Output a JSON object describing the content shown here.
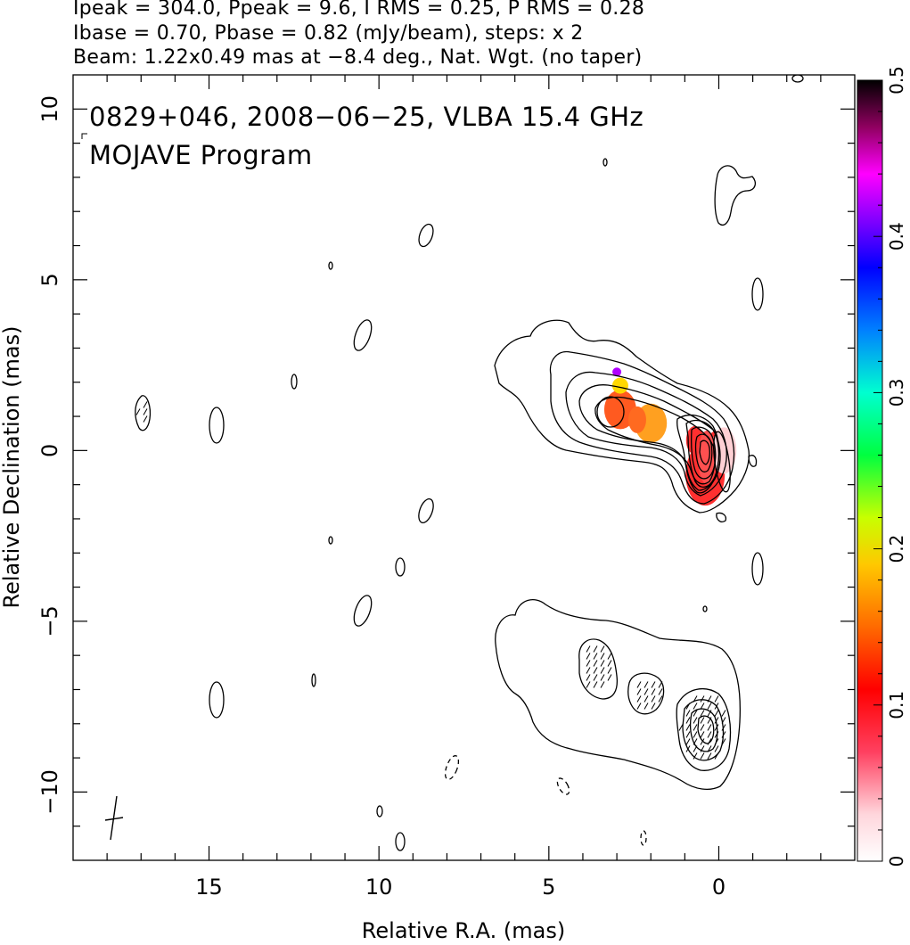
{
  "header": {
    "line1": "Ipeak = 304.0, Ppeak = 9.6, I RMS = 0.25, P RMS = 0.28",
    "line2": "Ibase = 0.70, Pbase = 0.82 (mJy/beam), steps: x 2",
    "line3": "Beam: 1.22x0.49 mas at −8.4 deg., Nat. Wgt. (no taper)"
  },
  "chart_data": {
    "type": "heatmap",
    "title": "0829+046, 2008−06−25, VLBA 15.4 GHz",
    "subtitle": "MOJAVE Program",
    "xlabel": "Relative R.A. (mas)",
    "ylabel": "Relative Declination (mas)",
    "xlim": [
      19.0,
      -4.0
    ],
    "ylim": [
      -12.0,
      11.0
    ],
    "x_ticks": [
      {
        "value": 15,
        "label": "15"
      },
      {
        "value": 10,
        "label": "10"
      },
      {
        "value": 5,
        "label": "5"
      },
      {
        "value": 0,
        "label": "0"
      }
    ],
    "y_ticks": [
      {
        "value": 10,
        "label": "10"
      },
      {
        "value": 5,
        "label": "5"
      },
      {
        "value": 0,
        "label": "0"
      },
      {
        "value": -5,
        "label": "−5"
      },
      {
        "value": -10,
        "label": "−10"
      }
    ],
    "colorbar": {
      "min": 0,
      "max": 0.5,
      "ticks": [
        {
          "value": 0,
          "label": "0"
        },
        {
          "value": 0.1,
          "label": "0.1"
        },
        {
          "value": 0.2,
          "label": "0.2"
        },
        {
          "value": 0.3,
          "label": "0.3"
        },
        {
          "value": 0.4,
          "label": "0.4"
        },
        {
          "value": 0.5,
          "label": "0.5"
        }
      ]
    },
    "fractional_polarization_regions": [
      {
        "x": 2.9,
        "y": 1.2,
        "value": 0.1
      },
      {
        "x": 2.9,
        "y": 1.9,
        "value": 0.2
      },
      {
        "x": 3.0,
        "y": 2.3,
        "value": 0.42
      },
      {
        "x": 2.0,
        "y": 0.8,
        "value": 0.14
      },
      {
        "x": 0.7,
        "y": 0.3,
        "value": 0.08
      },
      {
        "x": 0.1,
        "y": 0.0,
        "value": 0.05
      },
      {
        "x": 0.4,
        "y": -0.7,
        "value": 0.07
      }
    ],
    "colors": {
      "contour": "#000000",
      "pol_low": "#ff2a1a",
      "pol_mid": "#ffe000",
      "pol_high": "#8a00ff"
    }
  }
}
